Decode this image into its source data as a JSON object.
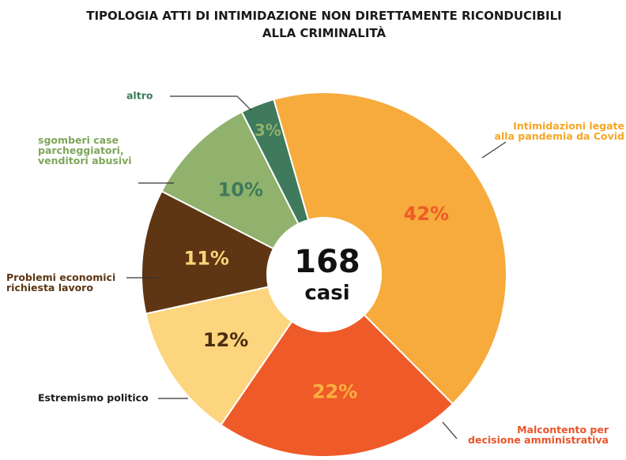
{
  "chart_data": {
    "type": "donut",
    "title": "TIPOLOGIA ATTI DI INTIMIDAZIONE NON DIRETTAMENTE RICONDUCIBILI\nALLA CRIMINALITÀ",
    "categories": [
      "Intimidazioni legate\nalla pandemia da Covid",
      "Malcontento per\ndecisione amministrativa",
      "Estremismo politico",
      "Problemi economici\nrichiesta lavoro",
      "sgomberi case\nparcheggiatori,\nvenditori abusivi",
      "altro"
    ],
    "values": [
      42,
      22,
      12,
      11,
      10,
      3
    ],
    "value_labels": [
      "42%",
      "22%",
      "12%",
      "11%",
      "10%",
      "3%"
    ],
    "colors": [
      "#f6ab3c",
      "#ef5a29",
      "#fdd57e",
      "#5e3613",
      "#90b26c",
      "#3e7a5b"
    ],
    "value_label_colors": [
      "#ef5a29",
      "#fbb040",
      "#4a2c10",
      "#fcd57a",
      "#3e7a5b",
      "#90b26c"
    ],
    "category_label_colors": [
      "#f6a623",
      "#e8542a",
      "#1a1a1a",
      "#5e3613",
      "#7ea65a",
      "#3e7a5b"
    ],
    "total": 168,
    "total_label": "casi"
  }
}
